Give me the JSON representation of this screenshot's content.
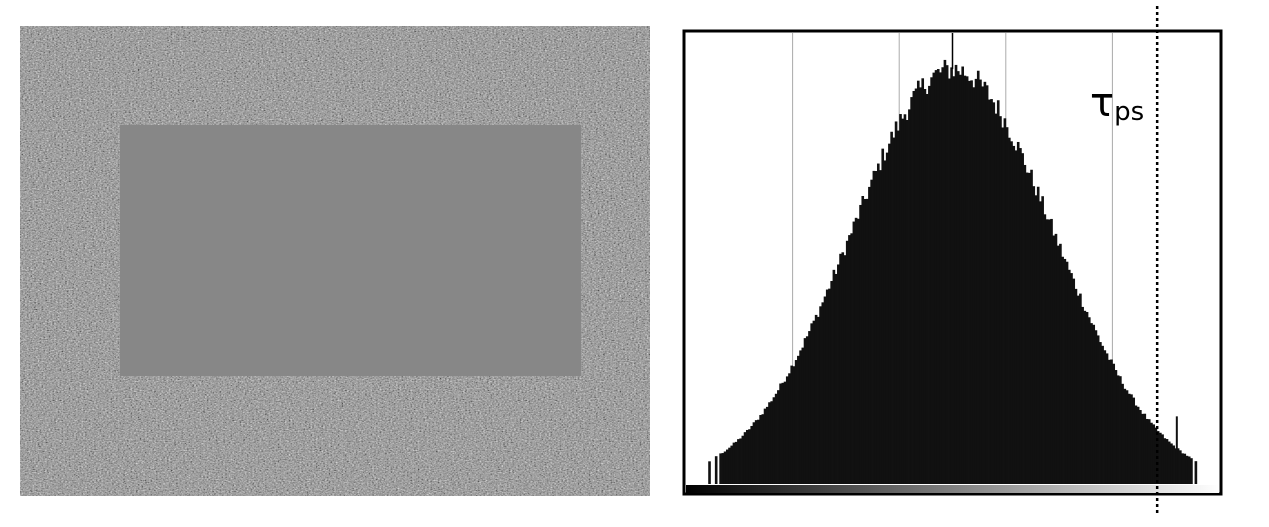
{
  "image_panel": {
    "noise_texture": "gaussian-noise",
    "background_color": "#888888",
    "masked_region_color": "#878787"
  },
  "chart_data": {
    "type": "bar",
    "title": "",
    "xlabel": "",
    "ylabel": "",
    "xlim": [
      0,
      1
    ],
    "ylim": [
      0,
      1
    ],
    "grid": "vertical",
    "gridlines_x": [
      0.2,
      0.4,
      0.6,
      0.8
    ],
    "center_marker_x": 0.5,
    "threshold": {
      "label_main": "τ",
      "label_sub": "ps",
      "x": 0.884
    },
    "distribution": {
      "shape": "gaussian",
      "mean": 0.5,
      "sigma": 0.19,
      "peak": 0.92
    },
    "colorbar": {
      "from": "#000000",
      "to": "#ffffff"
    },
    "bar_color": "#111111"
  }
}
